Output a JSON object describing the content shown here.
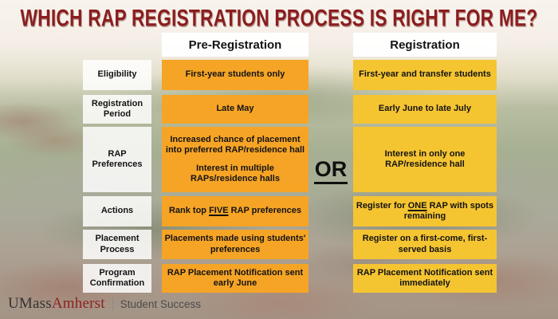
{
  "title": "WHICH RAP REGISTRATION PROCESS IS RIGHT FOR ME?",
  "columns": {
    "pre": {
      "header": "Pre-Registration"
    },
    "reg": {
      "header": "Registration"
    }
  },
  "or_label": "OR",
  "rows": [
    {
      "label": "Eligibility",
      "pre": "First-year students only",
      "reg": "First-year and transfer students"
    },
    {
      "label": "Registration Period",
      "pre": "Late May",
      "reg": "Early June to late July"
    },
    {
      "label": "RAP Preferences",
      "pre_para1": "Increased chance of placement into preferred RAP/residence hall",
      "pre_para2": "Interest in multiple RAPs/residence halls",
      "reg": "Interest in only one RAP/residence hall"
    },
    {
      "label": "Actions",
      "pre_parts": {
        "before": "Rank top ",
        "underline": "FIVE",
        "after": " RAP preferences"
      },
      "reg_parts": {
        "before": "Register for ",
        "underline": "ONE",
        "after": " RAP with spots remaining"
      }
    },
    {
      "label": "Placement Process",
      "pre": "Placements made using students' preferences",
      "reg": "Register on a first-come, first-served basis"
    },
    {
      "label": "Program Confirmation",
      "pre": "RAP Placement Notification sent early June",
      "reg": "RAP Placement Notification sent immediately"
    }
  ],
  "footer": {
    "brand_umass": "UMass",
    "brand_amherst": "Amherst",
    "division": "Student Success"
  },
  "colors": {
    "pre_cell_orange": "#F6A426",
    "reg_cell_yellow": "#F5C431",
    "title_red": "#8A1E1E",
    "umass_maroon": "#8E2222"
  }
}
